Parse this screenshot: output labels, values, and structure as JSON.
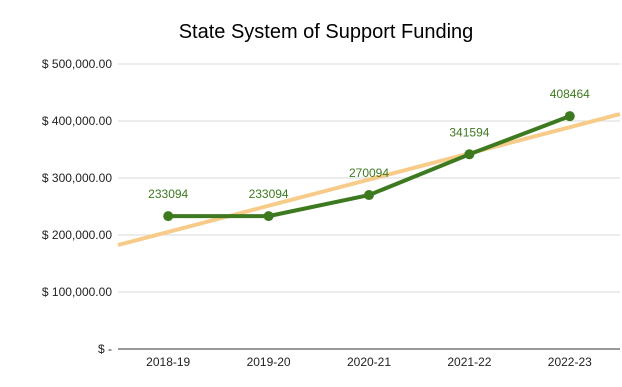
{
  "chart_data": {
    "type": "line",
    "title": "State System of Support Funding",
    "xlabel": "",
    "ylabel": "",
    "categories": [
      "2018-19",
      "2019-20",
      "2020-21",
      "2021-22",
      "2022-23"
    ],
    "series": [
      {
        "values": [
          233094,
          233094,
          270094,
          341594,
          408464
        ],
        "data_labels": [
          "233094",
          "233094",
          "270094",
          "341594",
          "408464"
        ],
        "color": "#3d7a1f"
      }
    ],
    "trendline": {
      "type": "linear",
      "color": "#f7cc8a"
    },
    "ylim": [
      0,
      500000
    ],
    "yticks": [
      0,
      100000,
      200000,
      300000,
      400000,
      500000
    ],
    "ytick_labels": [
      "$ -",
      "$ 100,000.00",
      "$ 200,000.00",
      "$ 300,000.00",
      "$ 400,000.00",
      "$ 500,000.00"
    ],
    "grid": true,
    "legend": "none"
  }
}
